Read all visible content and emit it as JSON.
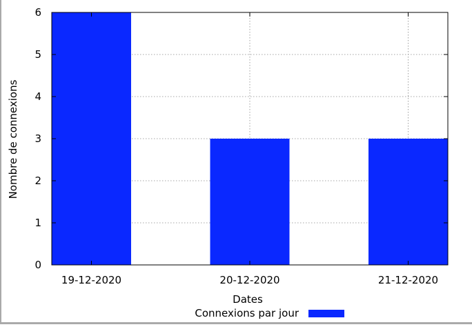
{
  "chart_data": {
    "type": "bar",
    "categories": [
      "19-12-2020",
      "20-12-2020",
      "21-12-2020"
    ],
    "series": [
      {
        "name": "Connexions par jour",
        "values": [
          6,
          3,
          3
        ],
        "color": "#0a28ff"
      }
    ],
    "title": "",
    "xlabel": "Dates",
    "ylabel": "Nombre de connexions",
    "ylim": [
      0,
      6
    ],
    "yticks": [
      "0",
      "1",
      "2",
      "3",
      "4",
      "5",
      "6"
    ],
    "grid": true,
    "legend": "bottom-center"
  }
}
